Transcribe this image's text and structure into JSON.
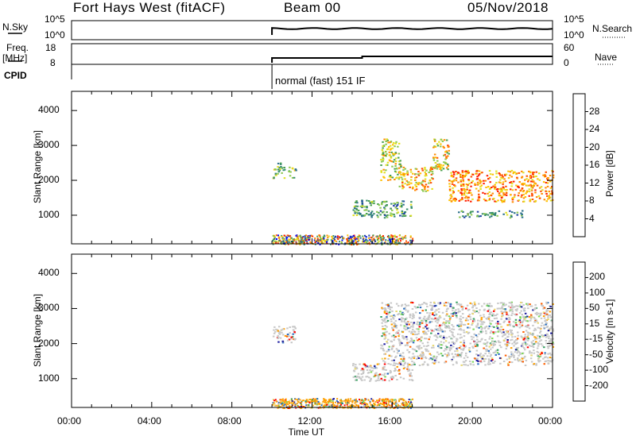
{
  "header": {
    "station": "Fort Hays West (fitACF)",
    "beam": "Beam 00",
    "date": "05/Nov/2018"
  },
  "top_panels": {
    "nsky_label": "N.Sky",
    "nsky_ticks": [
      "10^5",
      "10^0"
    ],
    "nsearch_label": "N.Search",
    "nsearch_ticks": [
      "10^5",
      "10^0"
    ],
    "freq_label": "Freq.",
    "freq_unit": "[MHz]",
    "freq_ticks": [
      "18",
      "8"
    ],
    "nave_label": "Nave",
    "nave_ticks": [
      "60",
      "0"
    ],
    "cpid_label": "CPID",
    "cpid_value": "normal (fast) 151 IF"
  },
  "colors": {
    "power": [
      "#0000ff",
      "#1f3fa6",
      "#2a6f8a",
      "#3a8f70",
      "#4aa050",
      "#8cc850",
      "#e0e020",
      "#ffc000",
      "#ff8c00",
      "#ff5000",
      "#ff2000"
    ],
    "velocity": [
      "#ff0000",
      "#ff6000",
      "#ffa000",
      "#e8d870",
      "#c8c8c8",
      "#7ed858",
      "#35a060",
      "#2a6ec0",
      "#1a1a9e"
    ]
  },
  "chart_data": [
    {
      "type": "heatmap",
      "name": "power",
      "xlabel": "",
      "ylabel": "Slant Range [km]",
      "xlim": [
        0,
        24
      ],
      "ylim": [
        180,
        4550
      ],
      "yticks": [
        1000,
        2000,
        3000,
        4000
      ],
      "colorbar_label": "Power [dB]",
      "colorbar_ticks": [
        "4",
        "8",
        "12",
        "16",
        "20",
        "24",
        "28"
      ],
      "colorbar_range": [
        0,
        30
      ],
      "regions": [
        {
          "t0": 10.0,
          "t1": 10.6,
          "r0": 2050,
          "r1": 2550,
          "level": 0.45
        },
        {
          "t0": 10.8,
          "t1": 11.2,
          "r0": 2050,
          "r1": 2400,
          "level": 0.45
        },
        {
          "t0": 15.4,
          "t1": 16.4,
          "r0": 2000,
          "r1": 3200,
          "level": 0.6
        },
        {
          "t0": 16.3,
          "t1": 18.0,
          "r0": 1700,
          "r1": 2400,
          "level": 0.7
        },
        {
          "t0": 18.0,
          "t1": 18.8,
          "r0": 2300,
          "r1": 3200,
          "level": 0.65
        },
        {
          "t0": 18.8,
          "t1": 24.0,
          "r0": 1400,
          "r1": 2300,
          "level": 0.8
        },
        {
          "t0": 14.0,
          "t1": 17.0,
          "r0": 950,
          "r1": 1450,
          "level": 0.35
        },
        {
          "t0": 19.2,
          "t1": 22.5,
          "r0": 950,
          "r1": 1150,
          "level": 0.35
        }
      ],
      "ground_scatter": {
        "t0": 10.0,
        "t1": 17.0,
        "r0": 180,
        "r1": 450
      }
    },
    {
      "type": "heatmap",
      "name": "velocity",
      "xlabel": "Time UT",
      "ylabel": "Slant Range [km]",
      "xlim": [
        0,
        24
      ],
      "ylim": [
        180,
        4550
      ],
      "xticks": [
        "00:00",
        "04:00",
        "08:00",
        "12:00",
        "16:00",
        "20:00",
        "00:00"
      ],
      "yticks": [
        1000,
        2000,
        3000,
        4000
      ],
      "colorbar_label": "Velocity [m s-1]",
      "colorbar_ticks": [
        "-200",
        "-100",
        "-50",
        "-15",
        "15",
        "50",
        "100",
        "200"
      ],
      "colorbar_range": [
        -250,
        250
      ],
      "regions": [
        {
          "t0": 10.0,
          "t1": 11.2,
          "r0": 2050,
          "r1": 2550,
          "level": 0.6
        },
        {
          "t0": 15.4,
          "t1": 24.0,
          "r0": 1400,
          "r1": 3200,
          "level": 0.5
        },
        {
          "t0": 14.0,
          "t1": 17.0,
          "r0": 950,
          "r1": 1450,
          "level": 0.5
        }
      ],
      "ground_scatter": {
        "t0": 10.0,
        "t1": 17.0,
        "r0": 180,
        "r1": 450
      }
    }
  ]
}
